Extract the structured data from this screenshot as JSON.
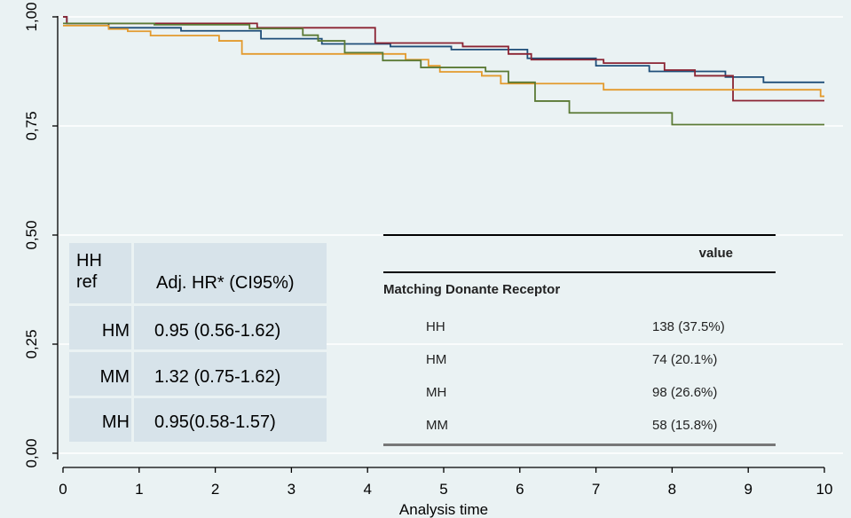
{
  "chart_data": {
    "type": "line",
    "xlabel": "Analysis time",
    "ylabel": "",
    "xlim": [
      0,
      10
    ],
    "ylim": [
      0,
      1
    ],
    "x_ticks": [
      0,
      1,
      2,
      3,
      4,
      5,
      6,
      7,
      8,
      9,
      10
    ],
    "y_ticks": [
      0,
      0.25,
      0.5,
      0.75,
      1.0
    ],
    "x_tick_labels": [
      "0",
      "1",
      "2",
      "3",
      "4",
      "5",
      "6",
      "7",
      "8",
      "9",
      "10"
    ],
    "y_tick_labels": [
      "0,00",
      "0,25",
      "0,50",
      "0,75",
      "1,00"
    ],
    "grid": true,
    "series": [
      {
        "color": "#1f4e79",
        "steps": [
          [
            0,
            1.0
          ],
          [
            0.05,
            0.985
          ],
          [
            0.6,
            0.975
          ],
          [
            1.55,
            0.968
          ],
          [
            2.6,
            0.95
          ],
          [
            3.4,
            0.938
          ],
          [
            4.3,
            0.932
          ],
          [
            5.1,
            0.925
          ],
          [
            6.1,
            0.905
          ],
          [
            7.0,
            0.888
          ],
          [
            7.7,
            0.875
          ],
          [
            8.7,
            0.862
          ],
          [
            9.2,
            0.85
          ],
          [
            10,
            0.85
          ]
        ]
      },
      {
        "color": "#8b2332",
        "steps": [
          [
            0,
            1.0
          ],
          [
            0.05,
            0.985
          ],
          [
            2.55,
            0.975
          ],
          [
            4.1,
            0.94
          ],
          [
            5.25,
            0.932
          ],
          [
            5.85,
            0.915
          ],
          [
            6.15,
            0.902
          ],
          [
            7.1,
            0.894
          ],
          [
            7.9,
            0.878
          ],
          [
            8.3,
            0.865
          ],
          [
            8.8,
            0.808
          ],
          [
            10,
            0.808
          ]
        ]
      },
      {
        "color": "#e39a2d",
        "steps": [
          [
            0,
            0.98
          ],
          [
            0.6,
            0.972
          ],
          [
            0.85,
            0.967
          ],
          [
            1.15,
            0.957
          ],
          [
            2.05,
            0.945
          ],
          [
            2.35,
            0.915
          ],
          [
            4.5,
            0.902
          ],
          [
            4.8,
            0.888
          ],
          [
            4.95,
            0.874
          ],
          [
            5.5,
            0.865
          ],
          [
            5.75,
            0.847
          ],
          [
            7.1,
            0.833
          ],
          [
            9.95,
            0.818
          ],
          [
            10,
            0.818
          ]
        ]
      },
      {
        "color": "#5b7a35",
        "steps": [
          [
            0,
            0.985
          ],
          [
            1.2,
            0.982
          ],
          [
            2.45,
            0.973
          ],
          [
            3.15,
            0.958
          ],
          [
            3.35,
            0.945
          ],
          [
            3.7,
            0.918
          ],
          [
            4.2,
            0.9
          ],
          [
            4.7,
            0.884
          ],
          [
            5.55,
            0.875
          ],
          [
            5.85,
            0.85
          ],
          [
            6.2,
            0.807
          ],
          [
            6.65,
            0.78
          ],
          [
            8.0,
            0.753
          ],
          [
            10,
            0.753
          ]
        ]
      }
    ]
  },
  "hr_table": {
    "header_ref": "HH\nref",
    "header_hr": "Adj. HR* (CI95%)",
    "rows": [
      {
        "group": "HM",
        "value": "0.95 (0.56-1.62)"
      },
      {
        "group": "MM",
        "value": "1.32 (0.75-1.62)"
      },
      {
        "group": "MH",
        "value": "0.95(0.58-1.57)"
      }
    ]
  },
  "count_table": {
    "column_header": "value",
    "section": "Matching Donante Receptor",
    "rows": [
      {
        "group": "HH",
        "value": "138 (37.5%)"
      },
      {
        "group": "HM",
        "value": "74 (20.1%)"
      },
      {
        "group": "MH",
        "value": "98 (26.6%)"
      },
      {
        "group": "MM",
        "value": "58 (15.8%)"
      }
    ]
  }
}
